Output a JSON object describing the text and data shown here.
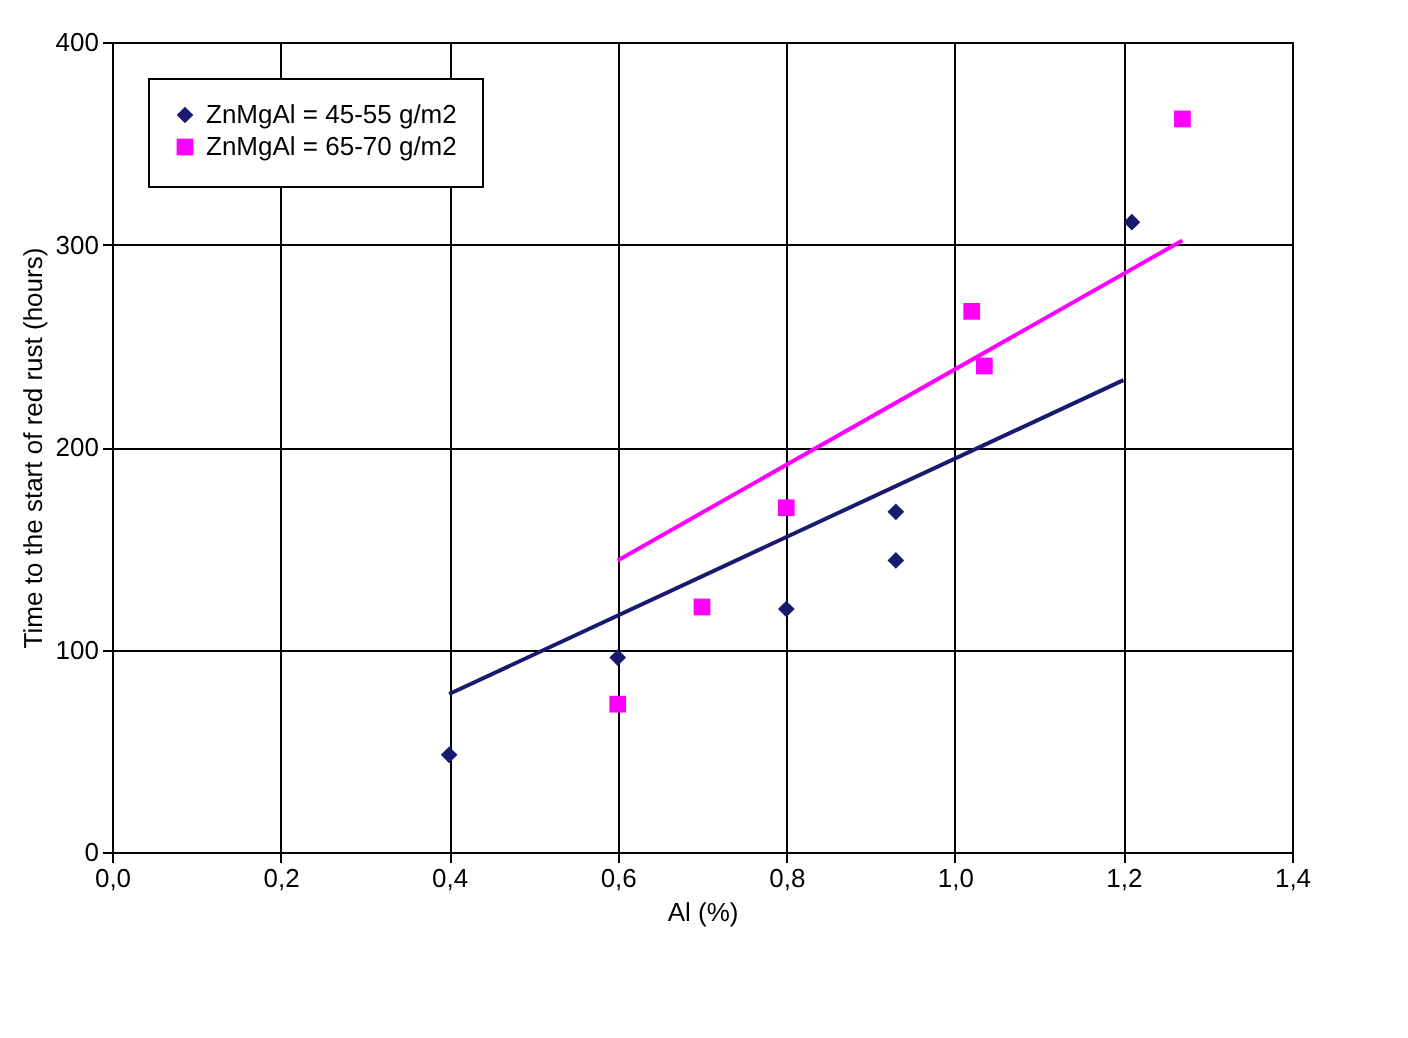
{
  "chart_data": {
    "type": "scatter",
    "xlabel": "Al (%)",
    "ylabel": "Time to the start of red rust (hours)",
    "xlim": [
      0,
      1.4
    ],
    "xticks": [
      {
        "value": 0,
        "label": "0,0"
      },
      {
        "value": 0.2,
        "label": "0,2"
      },
      {
        "value": 0.4,
        "label": "0,4"
      },
      {
        "value": 0.6,
        "label": "0,6"
      },
      {
        "value": 0.8,
        "label": "0,8"
      },
      {
        "value": 1,
        "label": "1,0"
      },
      {
        "value": 1.2,
        "label": "1,2"
      },
      {
        "value": 1.4,
        "label": "1,4"
      }
    ],
    "ylim": [
      0,
      400
    ],
    "yticks": [
      0,
      100,
      200,
      300,
      400
    ],
    "grid": true,
    "legend": "top left",
    "series": [
      {
        "name": "ZnMgAl = 45-55 g/m2",
        "color": "#191970",
        "marker": "diamond",
        "x": [
          0.4,
          0.6,
          0.8,
          0.93,
          0.93,
          1.21
        ],
        "values": [
          48,
          96,
          120,
          144,
          168,
          311
        ]
      },
      {
        "name": "ZnMgAl = 65-70 g/m2",
        "color": "#ff00ff",
        "marker": "square",
        "x": [
          0.6,
          0.7,
          0.8,
          1.02,
          1.035,
          1.27
        ],
        "values": [
          73,
          121,
          170,
          267,
          240,
          362
        ]
      },
      {
        "type": "line",
        "color": "#191970",
        "x": [
          0.4,
          1.2
        ],
        "values": [
          78,
          233
        ]
      },
      {
        "type": "line",
        "color": "#ff00ff",
        "x": [
          0.6,
          1.27
        ],
        "values": [
          144,
          302
        ]
      }
    ]
  }
}
